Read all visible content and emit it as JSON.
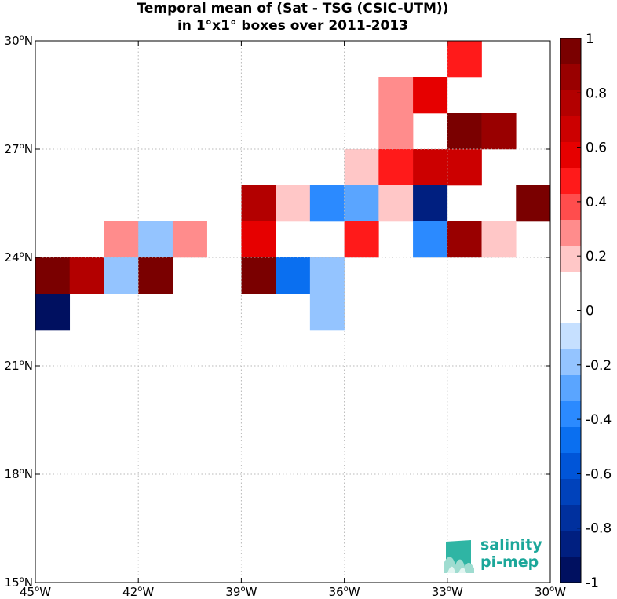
{
  "title": {
    "line1": "Temporal mean of (Sat - TSG (CSIC-UTM))",
    "line2": "in 1°x1° boxes over 2011-2013"
  },
  "map": {
    "lon_range": [
      -45,
      -30
    ],
    "lat_range": [
      15,
      30
    ],
    "grid_lines": "dotted",
    "x_ticks": [
      {
        "value": -45,
        "deg": "45",
        "hemi": "W"
      },
      {
        "value": -42,
        "deg": "42",
        "hemi": "W"
      },
      {
        "value": -39,
        "deg": "39",
        "hemi": "W"
      },
      {
        "value": -36,
        "deg": "36",
        "hemi": "W"
      },
      {
        "value": -33,
        "deg": "33",
        "hemi": "W"
      },
      {
        "value": -30,
        "deg": "30",
        "hemi": "W"
      }
    ],
    "y_ticks": [
      {
        "value": 15,
        "deg": "15",
        "hemi": "N"
      },
      {
        "value": 18,
        "deg": "18",
        "hemi": "N"
      },
      {
        "value": 21,
        "deg": "21",
        "hemi": "N"
      },
      {
        "value": 24,
        "deg": "24",
        "hemi": "N"
      },
      {
        "value": 27,
        "deg": "27",
        "hemi": "N"
      },
      {
        "value": 30,
        "deg": "30",
        "hemi": "N"
      }
    ]
  },
  "chart_data": {
    "type": "heatmap",
    "cell_size_deg": 1,
    "cells": [
      {
        "lon": -33,
        "lat": 29,
        "value": 0.45
      },
      {
        "lon": -35,
        "lat": 28,
        "value": 0.25
      },
      {
        "lon": -34,
        "lat": 28,
        "value": 0.55
      },
      {
        "lon": -35,
        "lat": 27,
        "value": 0.25
      },
      {
        "lon": -33,
        "lat": 27,
        "value": 0.95
      },
      {
        "lon": -32,
        "lat": 27,
        "value": 0.9
      },
      {
        "lon": -36,
        "lat": 26,
        "value": 0.15
      },
      {
        "lon": -35,
        "lat": 26,
        "value": 0.45
      },
      {
        "lon": -34,
        "lat": 26,
        "value": 0.65
      },
      {
        "lon": -33,
        "lat": 26,
        "value": 0.65
      },
      {
        "lon": -39,
        "lat": 25,
        "value": 0.75
      },
      {
        "lon": -38,
        "lat": 25,
        "value": 0.15
      },
      {
        "lon": -37,
        "lat": 25,
        "value": -0.35
      },
      {
        "lon": -36,
        "lat": 25,
        "value": -0.25
      },
      {
        "lon": -35,
        "lat": 25,
        "value": 0.15
      },
      {
        "lon": -34,
        "lat": 25,
        "value": -0.85
      },
      {
        "lon": -31,
        "lat": 25,
        "value": 0.95
      },
      {
        "lon": -43,
        "lat": 24,
        "value": 0.25
      },
      {
        "lon": -42,
        "lat": 24,
        "value": -0.15
      },
      {
        "lon": -41,
        "lat": 24,
        "value": 0.25
      },
      {
        "lon": -39,
        "lat": 24,
        "value": 0.55
      },
      {
        "lon": -36,
        "lat": 24,
        "value": 0.45
      },
      {
        "lon": -34,
        "lat": 24,
        "value": -0.35
      },
      {
        "lon": -33,
        "lat": 24,
        "value": 0.85
      },
      {
        "lon": -32,
        "lat": 24,
        "value": 0.15
      },
      {
        "lon": -45,
        "lat": 23,
        "value": 0.95
      },
      {
        "lon": -44,
        "lat": 23,
        "value": 0.75
      },
      {
        "lon": -43,
        "lat": 23,
        "value": -0.15
      },
      {
        "lon": -42,
        "lat": 23,
        "value": 0.95
      },
      {
        "lon": -39,
        "lat": 23,
        "value": 0.95
      },
      {
        "lon": -38,
        "lat": 23,
        "value": -0.45
      },
      {
        "lon": -37,
        "lat": 23,
        "value": -0.15
      },
      {
        "lon": -45,
        "lat": 22,
        "value": -0.95
      },
      {
        "lon": -37,
        "lat": 22,
        "value": -0.15
      }
    ],
    "colorbar": {
      "range": [
        -1,
        1
      ],
      "ticks": [
        "1",
        "0.8",
        "0.6",
        "0.4",
        "0.2",
        "0",
        "-0.2",
        "-0.4",
        "-0.6",
        "-0.8",
        "-1"
      ],
      "colors_top_to_bottom": [
        "#7a0000",
        "#990000",
        "#b30000",
        "#cc0000",
        "#e60000",
        "#ff1a1a",
        "#ff4d4d",
        "#ff8c8c",
        "#ffc7c7",
        "#ffffff",
        "#ffffff",
        "#c6e0ff",
        "#94c4ff",
        "#5aa5ff",
        "#2b8aff",
        "#0a6ff0",
        "#0055d8",
        "#0042bb",
        "#00309e",
        "#001f80",
        "#001060"
      ]
    }
  },
  "logo": {
    "line1": "salinity",
    "line2": "pi-mep",
    "color": "#1ba79a"
  }
}
